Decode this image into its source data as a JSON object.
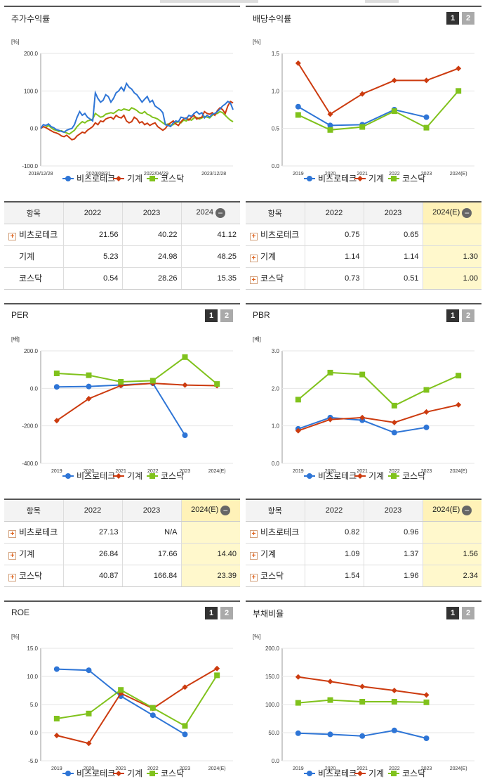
{
  "series_names": [
    "비츠로테크",
    "기계",
    "코스닥"
  ],
  "series_colors": {
    "s1": "#2e75d6",
    "s2": "#cc3b0f",
    "s3": "#80c21c"
  },
  "panels": {
    "stock_return": {
      "title": "주가수익률",
      "unit": "[%]"
    },
    "dividend": {
      "title": "배당수익률",
      "unit": "[%]",
      "btn1": "1",
      "btn2": "2"
    },
    "per": {
      "title": "PER",
      "unit": "[배]",
      "btn1": "1",
      "btn2": "2"
    },
    "pbr": {
      "title": "PBR",
      "unit": "[배]",
      "btn1": "1",
      "btn2": "2"
    },
    "roe": {
      "title": "ROE",
      "unit": "[%]",
      "btn1": "1",
      "btn2": "2"
    },
    "debt": {
      "title": "부채비율",
      "unit": "[%]",
      "btn1": "1",
      "btn2": "2"
    }
  },
  "tables": {
    "stock_return": {
      "headers": [
        "항목",
        "2022",
        "2023",
        "2024"
      ],
      "rows": [
        {
          "label": "비츠로테크",
          "plus": true,
          "values": [
            "21.56",
            "40.22",
            "41.12"
          ]
        },
        {
          "label": "기계",
          "plus": false,
          "values": [
            "5.23",
            "24.98",
            "48.25"
          ]
        },
        {
          "label": "코스닥",
          "plus": false,
          "values": [
            "0.54",
            "28.26",
            "15.35"
          ]
        }
      ]
    },
    "dividend": {
      "headers": [
        "항목",
        "2022",
        "2023",
        "2024(E)"
      ],
      "rows": [
        {
          "label": "비츠로테크",
          "plus": true,
          "values": [
            "0.75",
            "0.65",
            ""
          ]
        },
        {
          "label": "기계",
          "plus": true,
          "values": [
            "1.14",
            "1.14",
            "1.30"
          ]
        },
        {
          "label": "코스닥",
          "plus": true,
          "values": [
            "0.73",
            "0.51",
            "1.00"
          ]
        }
      ]
    },
    "per": {
      "headers": [
        "항목",
        "2022",
        "2023",
        "2024(E)"
      ],
      "rows": [
        {
          "label": "비츠로테크",
          "plus": true,
          "values": [
            "27.13",
            "N/A",
            ""
          ]
        },
        {
          "label": "기계",
          "plus": true,
          "values": [
            "26.84",
            "17.66",
            "14.40"
          ]
        },
        {
          "label": "코스닥",
          "plus": true,
          "values": [
            "40.87",
            "166.84",
            "23.39"
          ]
        }
      ]
    },
    "pbr": {
      "headers": [
        "항목",
        "2022",
        "2023",
        "2024(E)"
      ],
      "rows": [
        {
          "label": "비츠로테크",
          "plus": true,
          "values": [
            "0.82",
            "0.96",
            ""
          ]
        },
        {
          "label": "기계",
          "plus": true,
          "values": [
            "1.09",
            "1.37",
            "1.56"
          ]
        },
        {
          "label": "코스닥",
          "plus": true,
          "values": [
            "1.54",
            "1.96",
            "2.34"
          ]
        }
      ]
    }
  },
  "chart_data": [
    {
      "id": "stock_return",
      "type": "line",
      "title": "주가수익률",
      "ylabel": "[%]",
      "ylim": [
        -100,
        200
      ],
      "yticks": [
        "200.0",
        "100.0",
        "0.0",
        "-100.0"
      ],
      "ytick_values": [
        200,
        100,
        0,
        -100
      ],
      "x_tick_labels": [
        "2018/12/28",
        "2020/08/31",
        "2022/04/29",
        "2023/12/28"
      ],
      "x_tick_positions": [
        0,
        0.3,
        0.6,
        0.9
      ],
      "series": [
        {
          "name": "비츠로테크",
          "values": [
            0,
            10,
            8,
            12,
            5,
            2,
            -3,
            -5,
            -8,
            -10,
            -5,
            -2,
            0,
            10,
            30,
            45,
            35,
            40,
            30,
            25,
            20,
            95,
            80,
            70,
            75,
            90,
            85,
            70,
            80,
            95,
            100,
            110,
            100,
            120,
            110,
            105,
            95,
            90,
            80,
            70,
            78,
            85,
            70,
            75,
            60,
            55,
            50,
            42,
            10,
            8,
            5,
            15,
            20,
            18,
            30,
            28,
            25,
            35,
            32,
            40,
            45,
            38,
            42,
            28,
            35,
            30,
            38,
            40,
            45,
            52,
            60,
            65,
            72,
            68,
            50
          ],
          "markers": false
        },
        {
          "name": "기계",
          "values": [
            0,
            5,
            2,
            -2,
            -6,
            -10,
            -12,
            -15,
            -20,
            -22,
            -18,
            -24,
            -30,
            -28,
            -20,
            -15,
            -10,
            -12,
            -5,
            0,
            5,
            15,
            10,
            20,
            18,
            25,
            28,
            30,
            25,
            35,
            30,
            28,
            35,
            20,
            15,
            18,
            30,
            25,
            15,
            18,
            10,
            14,
            8,
            12,
            15,
            5,
            0,
            -5,
            0,
            10,
            15,
            20,
            12,
            8,
            18,
            25,
            28,
            22,
            30,
            35,
            25,
            28,
            30,
            45,
            40,
            38,
            42,
            35,
            48,
            55,
            50,
            40,
            60,
            72,
            68
          ],
          "markers": false
        },
        {
          "name": "코스닥",
          "values": [
            0,
            5,
            3,
            8,
            2,
            -3,
            -5,
            -8,
            -6,
            -10,
            -12,
            -15,
            -10,
            -5,
            5,
            12,
            18,
            15,
            20,
            22,
            25,
            40,
            35,
            30,
            32,
            38,
            40,
            42,
            40,
            45,
            50,
            48,
            52,
            50,
            48,
            55,
            52,
            48,
            42,
            40,
            45,
            38,
            35,
            30,
            28,
            25,
            20,
            15,
            10,
            12,
            8,
            10,
            15,
            18,
            15,
            22,
            20,
            25,
            22,
            28,
            30,
            25,
            28,
            32,
            30,
            28,
            35,
            38,
            40,
            45,
            42,
            35,
            28,
            22,
            18
          ],
          "markers": false
        }
      ]
    },
    {
      "id": "dividend",
      "type": "line",
      "title": "배당수익률",
      "ylabel": "[%]",
      "ylim": [
        0,
        1.5
      ],
      "yticks": [
        "1.5",
        "1.0",
        "0.5",
        "0.0"
      ],
      "ytick_values": [
        1.5,
        1.0,
        0.5,
        0.0
      ],
      "categories": [
        "2019",
        "2020",
        "2021",
        "2022",
        "2023",
        "2024(E)"
      ],
      "series": [
        {
          "name": "비츠로테크",
          "values": [
            0.79,
            0.54,
            0.55,
            0.75,
            0.65,
            null
          ]
        },
        {
          "name": "기계",
          "values": [
            1.37,
            0.69,
            0.96,
            1.14,
            1.14,
            1.3
          ]
        },
        {
          "name": "코스닥",
          "values": [
            0.68,
            0.48,
            0.52,
            0.73,
            0.51,
            1.0
          ]
        }
      ]
    },
    {
      "id": "per",
      "type": "line",
      "title": "PER",
      "ylabel": "[배]",
      "ylim": [
        -400,
        200
      ],
      "yticks": [
        "200.0",
        "0.0",
        "-200.0",
        "-400.0"
      ],
      "ytick_values": [
        200,
        0,
        -200,
        -400
      ],
      "categories": [
        "2019",
        "2020",
        "2021",
        "2022",
        "2023",
        "2024(E)"
      ],
      "series": [
        {
          "name": "비츠로테크",
          "values": [
            8,
            10,
            18,
            27.13,
            -250,
            null
          ]
        },
        {
          "name": "기계",
          "values": [
            -172,
            -55,
            15,
            26.84,
            17.66,
            14.4
          ]
        },
        {
          "name": "코스닥",
          "values": [
            80,
            70,
            35,
            40.87,
            166.84,
            23.39
          ]
        }
      ]
    },
    {
      "id": "pbr",
      "type": "line",
      "title": "PBR",
      "ylabel": "[배]",
      "ylim": [
        0,
        3.0
      ],
      "yticks": [
        "3.0",
        "2.0",
        "1.0",
        "0.0"
      ],
      "ytick_values": [
        3.0,
        2.0,
        1.0,
        0.0
      ],
      "categories": [
        "2019",
        "2020",
        "2021",
        "2022",
        "2023",
        "2024(E)"
      ],
      "series": [
        {
          "name": "비츠로테크",
          "values": [
            0.92,
            1.22,
            1.15,
            0.82,
            0.96,
            null
          ]
        },
        {
          "name": "기계",
          "values": [
            0.87,
            1.17,
            1.22,
            1.09,
            1.37,
            1.56
          ]
        },
        {
          "name": "코스닥",
          "values": [
            1.7,
            2.42,
            2.37,
            1.54,
            1.96,
            2.34
          ]
        }
      ]
    },
    {
      "id": "roe",
      "type": "line",
      "title": "ROE",
      "ylabel": "[%]",
      "ylim": [
        -5,
        15
      ],
      "yticks": [
        "15.0",
        "10.0",
        "5.0",
        "0.0",
        "-5.0"
      ],
      "ytick_values": [
        15,
        10,
        5,
        0,
        -5
      ],
      "categories": [
        "2019",
        "2020",
        "2021",
        "2022",
        "2023",
        "2024(E)"
      ],
      "series": [
        {
          "name": "비츠로테크",
          "values": [
            11.3,
            11.1,
            6.5,
            3.1,
            -0.3,
            null
          ]
        },
        {
          "name": "기계",
          "values": [
            -0.5,
            -1.9,
            7.0,
            4.3,
            8.1,
            11.4
          ]
        },
        {
          "name": "코스닥",
          "values": [
            2.5,
            3.4,
            7.6,
            4.4,
            1.2,
            10.2
          ]
        }
      ]
    },
    {
      "id": "debt",
      "type": "line",
      "title": "부채비율",
      "ylabel": "[%]",
      "ylim": [
        0,
        200
      ],
      "yticks": [
        "200.0",
        "150.0",
        "100.0",
        "50.0",
        "0.0"
      ],
      "ytick_values": [
        200,
        150,
        100,
        50,
        0
      ],
      "categories": [
        "2019",
        "2020",
        "2021",
        "2022",
        "2023",
        "2024(E)"
      ],
      "series": [
        {
          "name": "비츠로테크",
          "values": [
            49,
            47,
            44,
            54,
            40,
            null
          ]
        },
        {
          "name": "기계",
          "values": [
            149,
            141,
            132,
            125,
            117,
            null
          ]
        },
        {
          "name": "코스닥",
          "values": [
            103,
            108,
            105,
            105,
            104,
            null
          ]
        }
      ]
    }
  ]
}
